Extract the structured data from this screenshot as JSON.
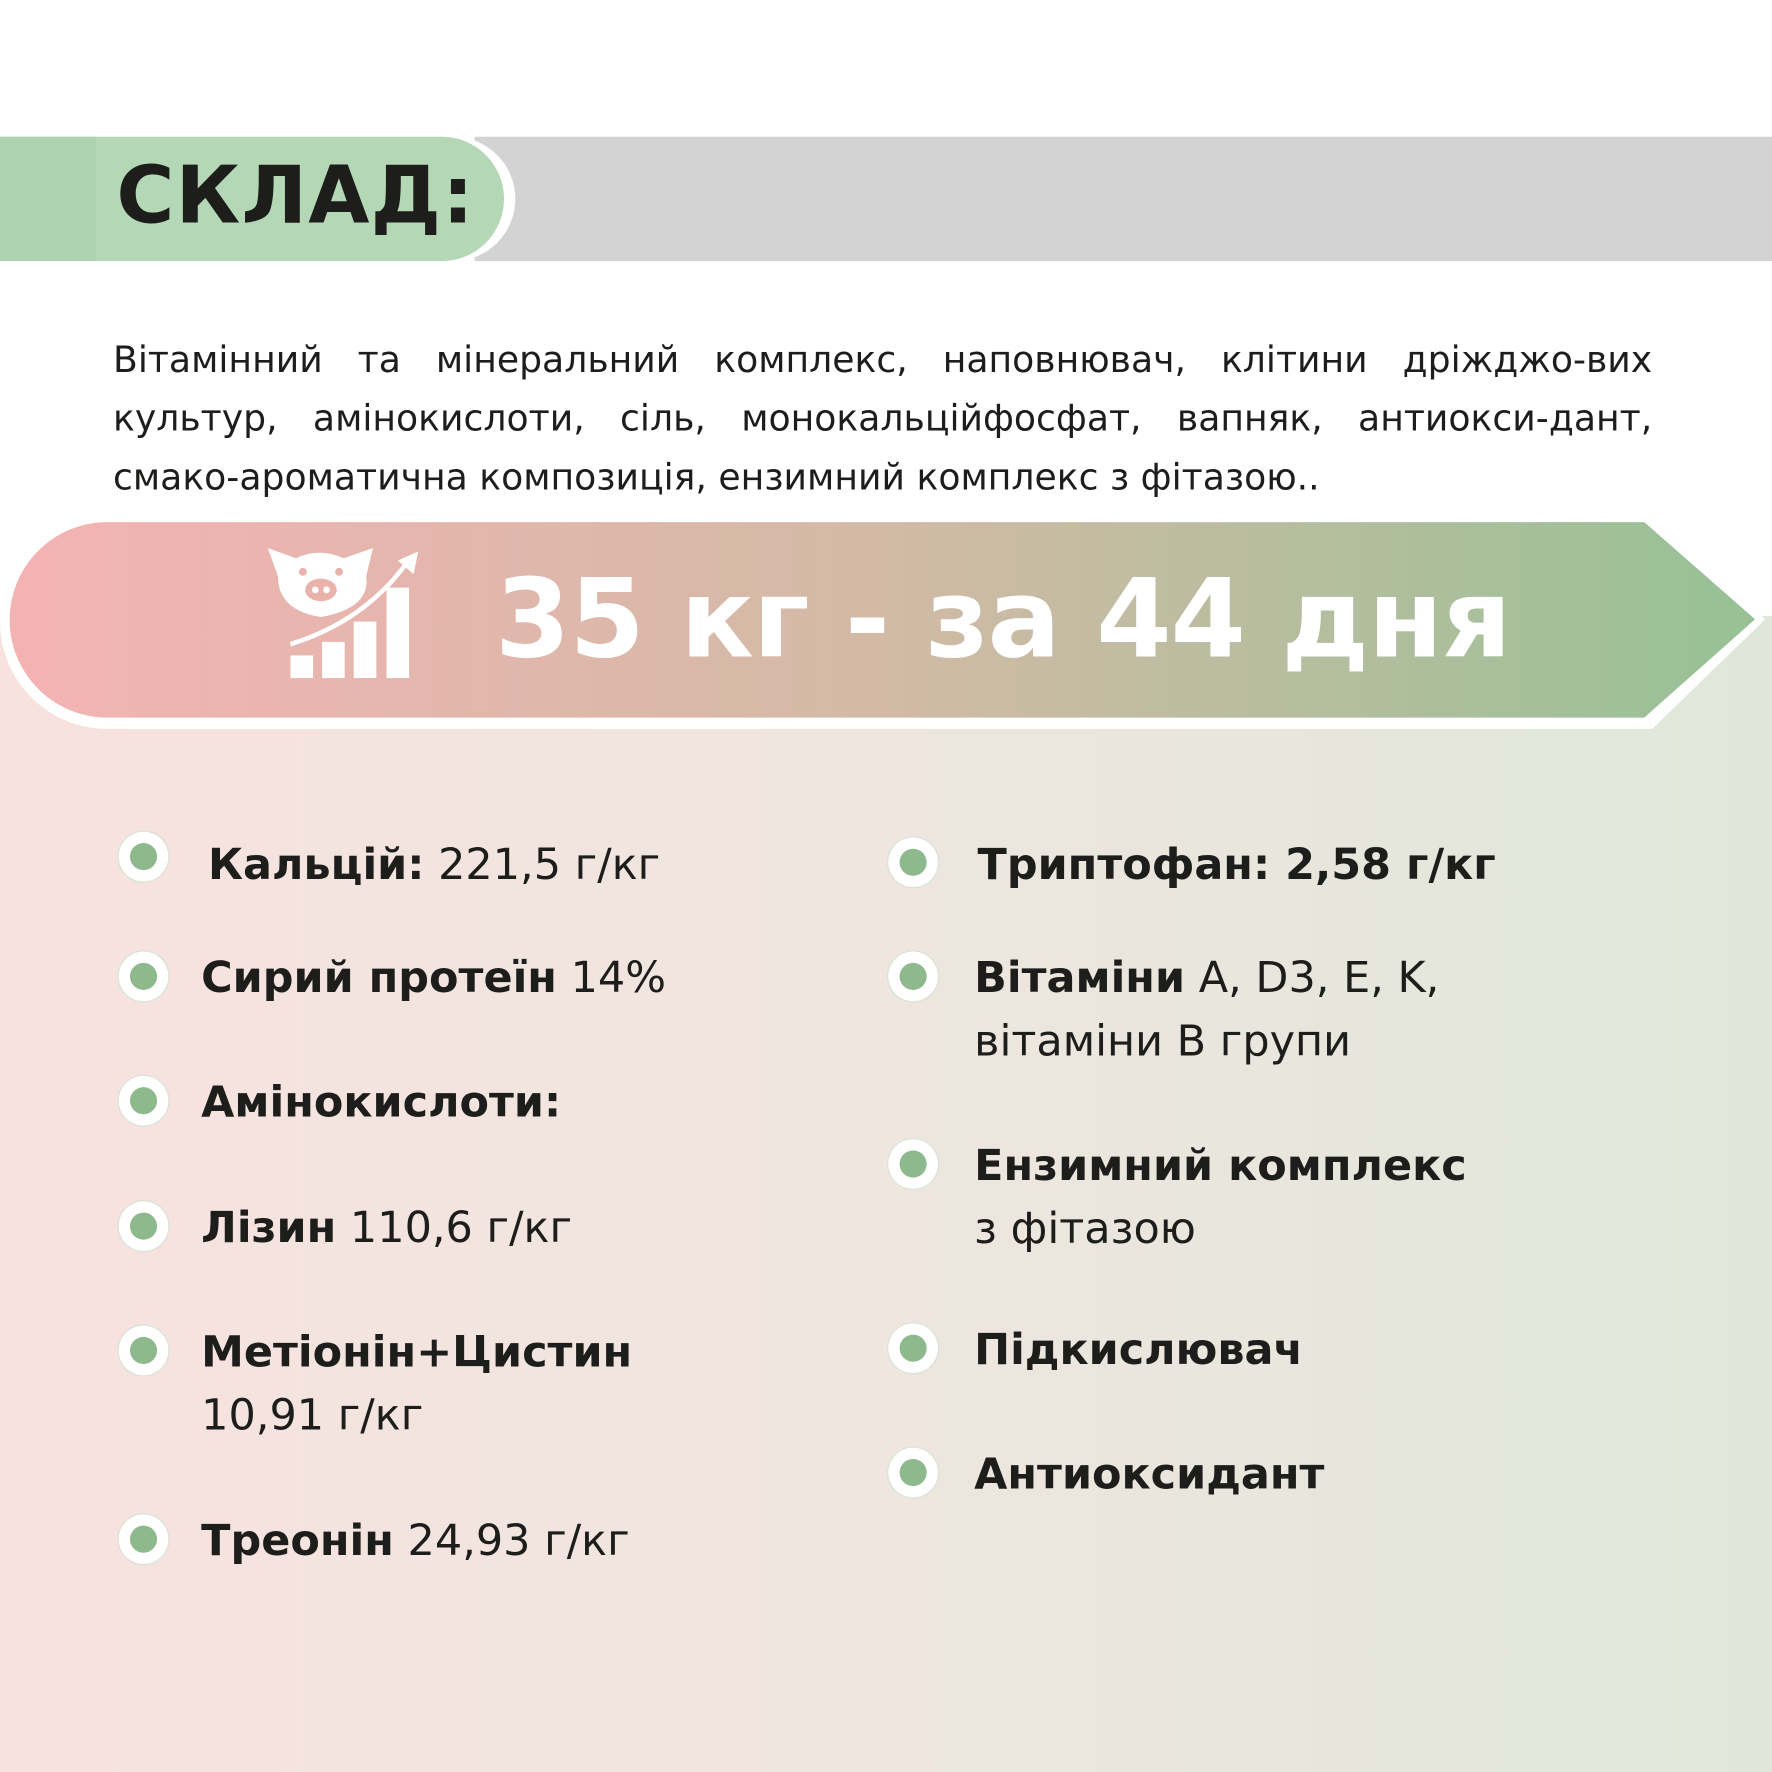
{
  "header": {
    "title": "СКЛАД:"
  },
  "composition": "Вітамінний та мінеральний комплекс, наповнювач, клітини дріжджо-вих культур, амінокислоти, сіль, монокальційфосфат, вапняк, антиокси-дант, смако-ароматична композиція, ензимний комплекс з фітазою..",
  "banner": {
    "text": "35 кг - за 44 дня",
    "icon": "pig-growth-chart-icon",
    "colors": {
      "start": "#f4b3b3",
      "end": "#97c196"
    }
  },
  "left_items": [
    {
      "bold": "Кальцій:",
      "rest": " 221,5 г/кг"
    },
    {
      "bold": "Сирий протеїн",
      "rest": " 14%"
    },
    {
      "bold": "Амінокислоти:",
      "rest": ""
    },
    {
      "bold": "Лізин",
      "rest": " 110,6 г/кг"
    },
    {
      "bold": "Метіонін+Цистин",
      "rest": "10,91 г/кг"
    },
    {
      "bold": "Треонін",
      "rest": " 24,93 г/кг"
    }
  ],
  "right_items": [
    {
      "bold": "Триптофан: 2,58 г/кг",
      "rest": ""
    },
    {
      "bold": "Вітаміни",
      "rest": " A, D3, E, K, вітаміни В групи"
    },
    {
      "bold": "Ензимний комплекс",
      "rest": "з фітазою"
    },
    {
      "bold": "Підкислювач",
      "rest": ""
    },
    {
      "bold": "Антиоксидант",
      "rest": ""
    }
  ],
  "colors": {
    "green": "#b4d8b6",
    "gray": "#d3d3d3",
    "bullet": "#8db98d"
  }
}
